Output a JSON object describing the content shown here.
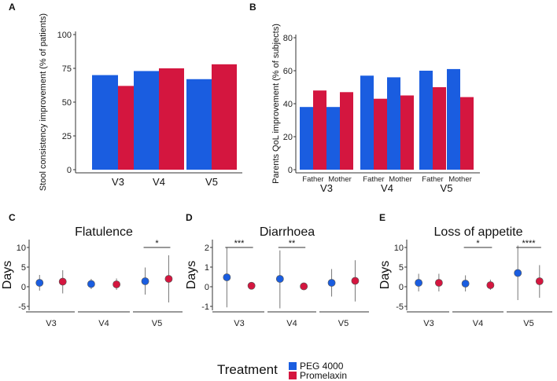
{
  "colors": {
    "peg": "#1a5de0",
    "prom": "#d4163f",
    "axis": "#333333",
    "errorbar": "#777777"
  },
  "legend": {
    "title": "Treatment",
    "items": [
      {
        "label": "PEG 4000",
        "color": "#1a5de0"
      },
      {
        "label": "Promelaxin",
        "color": "#d4163f"
      }
    ]
  },
  "chart_data": [
    {
      "id": "A",
      "type": "bar",
      "panel_label": "A",
      "ylabel": "Stool consistency improvement (% of patients)",
      "ylim": [
        0,
        100
      ],
      "yticks": [
        0,
        25,
        50,
        75,
        100
      ],
      "categories": [
        "V3",
        "V4",
        "V5"
      ],
      "series": [
        {
          "name": "PEG 4000",
          "values": [
            70,
            73,
            67
          ]
        },
        {
          "name": "Promelaxin",
          "values": [
            62,
            75,
            78
          ]
        }
      ]
    },
    {
      "id": "B",
      "type": "bar",
      "panel_label": "B",
      "ylabel": "Parents QoL improvement (% of subjects)",
      "ylim": [
        0,
        80
      ],
      "yticks": [
        0,
        20,
        40,
        60,
        80
      ],
      "categories": [
        "V3",
        "V4",
        "V5"
      ],
      "subcategories": [
        "Father",
        "Mother"
      ],
      "series": [
        {
          "name": "PEG 4000",
          "values": [
            [
              38,
              38
            ],
            [
              57,
              56
            ],
            [
              60,
              61
            ]
          ]
        },
        {
          "name": "Promelaxin",
          "values": [
            [
              48,
              47
            ],
            [
              43,
              45
            ],
            [
              50,
              44
            ]
          ]
        }
      ]
    },
    {
      "id": "C",
      "type": "scatter",
      "panel_label": "C",
      "title": "Flatulence",
      "ylabel": "Days",
      "ylim": [
        -6,
        12
      ],
      "yticks": [
        -5,
        0,
        5,
        10
      ],
      "categories": [
        "V3",
        "V4",
        "V5"
      ],
      "series": [
        {
          "name": "PEG 4000",
          "mean": [
            1.0,
            0.7,
            1.4
          ],
          "low": [
            -1.0,
            -0.6,
            -2.0
          ],
          "high": [
            3.0,
            2.0,
            4.9
          ]
        },
        {
          "name": "Promelaxin",
          "mean": [
            1.3,
            0.6,
            2.0
          ],
          "low": [
            -1.7,
            -0.8,
            -4.0
          ],
          "high": [
            4.2,
            2.1,
            8.0
          ]
        }
      ],
      "significance": [
        {
          "category": "V5",
          "label": "*"
        }
      ]
    },
    {
      "id": "D",
      "type": "scatter",
      "panel_label": "D",
      "title": "Diarrhoea",
      "ylabel": "Days",
      "ylim": [
        -1.2,
        2.4
      ],
      "yticks": [
        -1,
        0,
        1,
        2
      ],
      "categories": [
        "V3",
        "V4",
        "V5"
      ],
      "series": [
        {
          "name": "PEG 4000",
          "mean": [
            0.48,
            0.4,
            0.2
          ],
          "low": [
            -1.05,
            -1.1,
            -0.5
          ],
          "high": [
            2.0,
            1.85,
            0.9
          ]
        },
        {
          "name": "Promelaxin",
          "mean": [
            0.05,
            0.02,
            0.3
          ],
          "low": [
            -0.1,
            -0.05,
            -0.75
          ],
          "high": [
            0.2,
            0.1,
            1.35
          ]
        }
      ],
      "significance": [
        {
          "category": "V3",
          "label": "***"
        },
        {
          "category": "V4",
          "label": "**"
        }
      ]
    },
    {
      "id": "E",
      "type": "scatter",
      "panel_label": "E",
      "title": "Loss of appetite",
      "ylabel": "Days",
      "ylim": [
        -6,
        12
      ],
      "yticks": [
        -5,
        0,
        5,
        10
      ],
      "categories": [
        "V3",
        "V4",
        "V5"
      ],
      "series": [
        {
          "name": "PEG 4000",
          "mean": [
            1.0,
            0.8,
            3.5
          ],
          "low": [
            -1.2,
            -1.2,
            -3.4
          ],
          "high": [
            3.3,
            2.9,
            10.5
          ]
        },
        {
          "name": "Promelaxin",
          "mean": [
            1.0,
            0.4,
            1.4
          ],
          "low": [
            -1.2,
            -0.8,
            -2.8
          ],
          "high": [
            3.3,
            1.8,
            5.5
          ]
        }
      ],
      "significance": [
        {
          "category": "V4",
          "label": "*"
        },
        {
          "category": "V5",
          "label": "****"
        }
      ]
    }
  ]
}
